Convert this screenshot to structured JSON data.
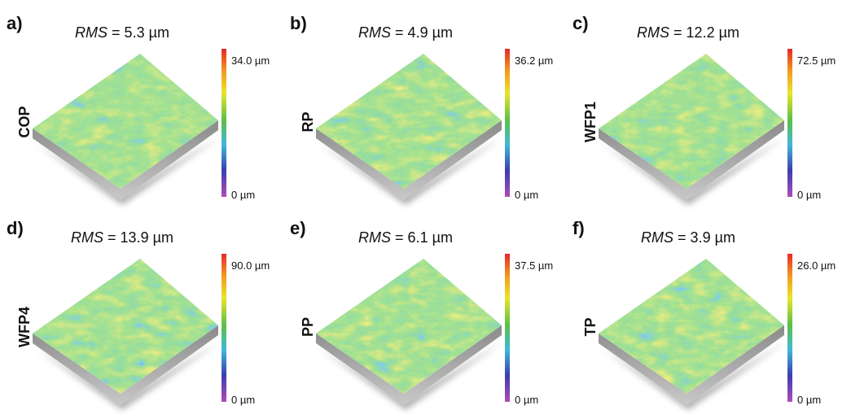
{
  "panels": [
    {
      "letter": "a)",
      "rms_label": "RMS",
      "rms_value": "= 5.3 µm",
      "sample": "COP",
      "scale_max": "34.0 µm",
      "scale_min": "0 µm"
    },
    {
      "letter": "b)",
      "rms_label": "RMS",
      "rms_value": "= 4.9 µm",
      "sample": "RP",
      "scale_max": "36.2 µm",
      "scale_min": "0 µm"
    },
    {
      "letter": "c)",
      "rms_label": "RMS",
      "rms_value": "= 12.2 µm",
      "sample": "WFP1",
      "scale_max": "72.5 µm",
      "scale_min": "0 µm"
    },
    {
      "letter": "d)",
      "rms_label": "RMS",
      "rms_value": "= 13.9 µm",
      "sample": "WFP4",
      "scale_max": "90.0 µm",
      "scale_min": "0 µm"
    },
    {
      "letter": "e)",
      "rms_label": "RMS",
      "rms_value": "= 6.1 µm",
      "sample": "PP",
      "scale_max": "37.5 µm",
      "scale_min": "0 µm"
    },
    {
      "letter": "f)",
      "rms_label": "RMS",
      "rms_value": "= 3.9 µm",
      "sample": "TP",
      "scale_max": "26.0 µm",
      "scale_min": "0 µm"
    }
  ]
}
